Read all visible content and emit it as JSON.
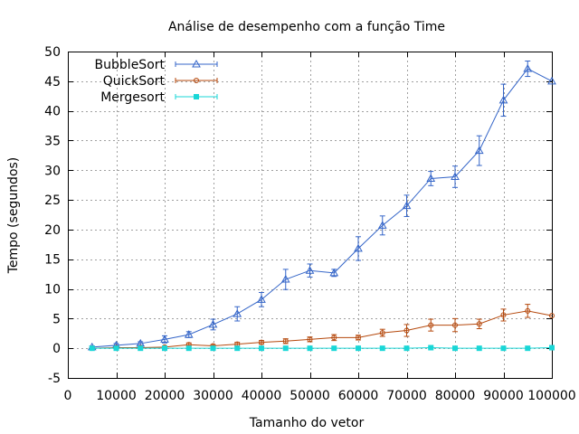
{
  "chart_data": {
    "type": "line",
    "title": "Análise de desempenho com a função Time",
    "xlabel": "Tamanho do vetor",
    "ylabel": "Tempo (segundos)",
    "xlim": [
      0,
      100000
    ],
    "ylim": [
      -5,
      50
    ],
    "xticks": [
      "0",
      "10000",
      "20000",
      "30000",
      "40000",
      "50000",
      "60000",
      "70000",
      "80000",
      "90000",
      "100000"
    ],
    "yticks": [
      "-5",
      "0",
      "5",
      "10",
      "15",
      "20",
      "25",
      "30",
      "35",
      "40",
      "45",
      "50"
    ],
    "grid": true,
    "legend_position": "top-left",
    "x": [
      5000,
      10000,
      15000,
      20000,
      25000,
      30000,
      35000,
      40000,
      45000,
      50000,
      55000,
      60000,
      65000,
      70000,
      75000,
      80000,
      85000,
      90000,
      95000,
      100000
    ],
    "series": [
      {
        "name": "BubbleSort",
        "color": "#3465c8",
        "marker": "triangle",
        "values": [
          0.2,
          0.5,
          0.8,
          1.5,
          2.3,
          4.0,
          5.8,
          8.2,
          11.6,
          13.1,
          12.7,
          16.8,
          20.7,
          24.0,
          28.6,
          28.9,
          33.3,
          41.8,
          47.1,
          45.0
        ],
        "errors": [
          0.2,
          0.3,
          0.3,
          0.6,
          0.5,
          0.9,
          1.2,
          1.2,
          1.7,
          1.1,
          0.6,
          2.0,
          1.6,
          1.8,
          1.2,
          1.8,
          2.5,
          2.7,
          1.3,
          0.0
        ]
      },
      {
        "name": "QuickSort",
        "color": "#b5480c",
        "marker": "circle",
        "values": [
          0.0,
          0.1,
          0.1,
          0.2,
          0.6,
          0.4,
          0.7,
          1.0,
          1.2,
          1.5,
          1.8,
          1.8,
          2.6,
          3.0,
          3.9,
          3.9,
          4.1,
          5.6,
          6.3,
          5.5
        ],
        "errors": [
          0.05,
          0.1,
          0.1,
          0.15,
          0.3,
          0.2,
          0.3,
          0.3,
          0.4,
          0.4,
          0.5,
          0.4,
          0.6,
          1.0,
          1.0,
          1.1,
          0.8,
          1.0,
          1.1,
          0.0
        ]
      },
      {
        "name": "Mergesort",
        "color": "#19d7d7",
        "marker": "square",
        "values": [
          0.0,
          0.0,
          0.0,
          0.0,
          0.0,
          0.0,
          0.0,
          0.0,
          0.0,
          0.0,
          0.0,
          0.0,
          0.0,
          0.0,
          0.1,
          0.0,
          0.0,
          0.0,
          0.0,
          0.1
        ],
        "errors": [
          0,
          0,
          0,
          0,
          0,
          0,
          0,
          0,
          0,
          0,
          0,
          0,
          0,
          0,
          0.1,
          0,
          0,
          0,
          0,
          0
        ]
      }
    ]
  }
}
